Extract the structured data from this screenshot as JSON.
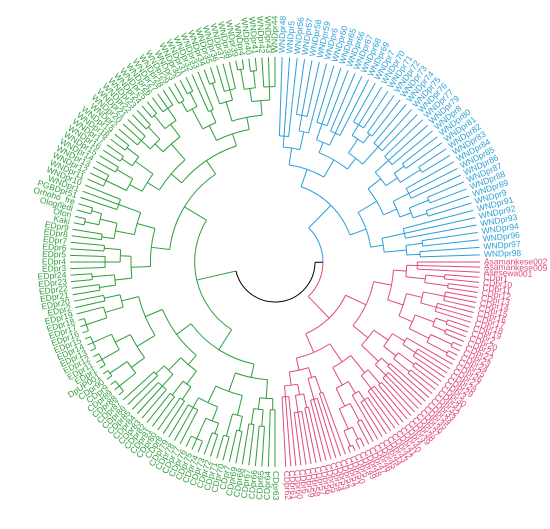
{
  "colors": {
    "root": "#000000",
    "blue": "#2b9fd8",
    "green": "#2e9e3a",
    "pink": "#e04a7a"
  },
  "clades": [
    {
      "id": "blue",
      "color_key": "blue",
      "labels": [
        "WNDpr48",
        "WNDpr5",
        "WNDpr56",
        "WNDpr57",
        "WNDpr58",
        "WNDpr59",
        "WNDpr6",
        "WNDpr60",
        "WNDpr65",
        "WNDpr66",
        "WNDpr67",
        "WNDpr68",
        "WNDpr69",
        "WNDpr7",
        "WNDpr70",
        "WNDpr71",
        "WNDpr72",
        "WNDpr73",
        "WNDpr74",
        "WNDpr75",
        "WNDpr76",
        "WNDpr77",
        "WNDpr79",
        "WNDpr8",
        "WNDpr80",
        "WNDpr81",
        "WNDpr82",
        "WNDpr83",
        "WNDpr84",
        "WNDpr85",
        "WNDpr86",
        "WNDpr87",
        "WNDpr88",
        "WNDpr89",
        "WNDpr9",
        "WNDpr91",
        "WNDpr92",
        "WNDpr93",
        "WNDpr94",
        "WNDpr96",
        "WNDpr97",
        "WNDpr98"
      ]
    },
    {
      "id": "pink",
      "color_key": "pink",
      "labels": [
        "Asamankese002",
        "Asamankese009",
        "Asesewa001",
        "CDpr1",
        "CDpr10",
        "CDpr11",
        "CDpr12",
        "CDpr13",
        "CDpr14",
        "CDpr15",
        "CDpr16",
        "CDpr17",
        "CDpr18",
        "CDpr19",
        "CDpr2",
        "CDpr20",
        "CDpr21",
        "CDpr22",
        "CDpr23",
        "CDpr24",
        "CDpr25",
        "CDpr26",
        "CDpr27",
        "CDpr28",
        "CDpr29",
        "CDpr3",
        "CDpr30",
        "CDpr31",
        "CDpr32",
        "CDpr33",
        "CDpr34",
        "CDpr35",
        "CDpr36",
        "CDpr37",
        "CDpr38",
        "CDpr39",
        "CDpr4",
        "CDpr40",
        "CDpr41",
        "CDpr42",
        "CDpr43",
        "CDpr44",
        "CDpr45",
        "CDpr46",
        "CDpr47",
        "CDpr48",
        "CDpr49",
        "CDpr5",
        "CDpr50",
        "CDpr51",
        "CDpr52",
        "CDpr53",
        "CDpr54",
        "CDpr55",
        "CDpr56",
        "CDpr57",
        "CDpr58",
        "CDpr59",
        "CDpr6",
        "CDpr60",
        "CDpr61",
        "CDpr62"
      ]
    },
    {
      "id": "green",
      "color_key": "green",
      "labels": [
        "CDpr63",
        "CDpr64",
        "CDpr65",
        "CDpr66",
        "CDpr67",
        "CDpr68",
        "CDpr69",
        "CDpr7",
        "CDpr70",
        "CDpr71",
        "CDpr72",
        "CDpr73",
        "CDpr74",
        "CDpr75",
        "CDpr76",
        "CDpr77",
        "CDpr78",
        "CDpr79",
        "CDpr8",
        "CDpr80",
        "CDpr81",
        "CDpr82",
        "CDpr83",
        "CDpr84",
        "CDpr85",
        "CDpr86",
        "CDpr87",
        "CDpr88",
        "CDpr89",
        "CDpr9",
        "CDpr90",
        "DpUP001",
        "EDpr1",
        "EDpr11",
        "EDpr12",
        "EDpr13",
        "EDpr14",
        "EDpr15",
        "EDpr16",
        "EDpr17",
        "EDpr18",
        "EDpr19",
        "EDpr2",
        "EDpr20",
        "EDpr21",
        "EDpr22",
        "EDpr23",
        "EDpr24",
        "EDpr3",
        "EDpr4",
        "EDpr5",
        "EDpr6",
        "EDpr7",
        "EDpr8",
        "EDpr9",
        "Kaki",
        "Ofori",
        "Olognedi",
        "Orhoho_fre",
        "PGBDpr51",
        "WNDpr1",
        "WNDpr10",
        "WNDpr11",
        "WNDpr12",
        "WNDpr13",
        "WNDpr14",
        "WNDpr15",
        "WNDpr16",
        "WNDpr17",
        "WNDpr18",
        "WNDpr19",
        "WNDpr2",
        "WNDpr20",
        "WNDpr21",
        "WNDpr22",
        "WNDpr23",
        "WNDpr24",
        "WNDpr25",
        "WNDpr26",
        "WNDpr27",
        "WNDpr28",
        "WNDpr29",
        "WNDpr3",
        "WNDpr30",
        "WNDpr31",
        "WNDpr32",
        "WNDpr33",
        "WNDpr34",
        "WNDpr35",
        "WNDpr36",
        "WNDpr37",
        "WNDpr38",
        "WNDpr39",
        "WNDpr4",
        "WNDpr40",
        "WNDpr41",
        "WNDpr42",
        "WNDpr43",
        "WNDpr44"
      ]
    }
  ]
}
